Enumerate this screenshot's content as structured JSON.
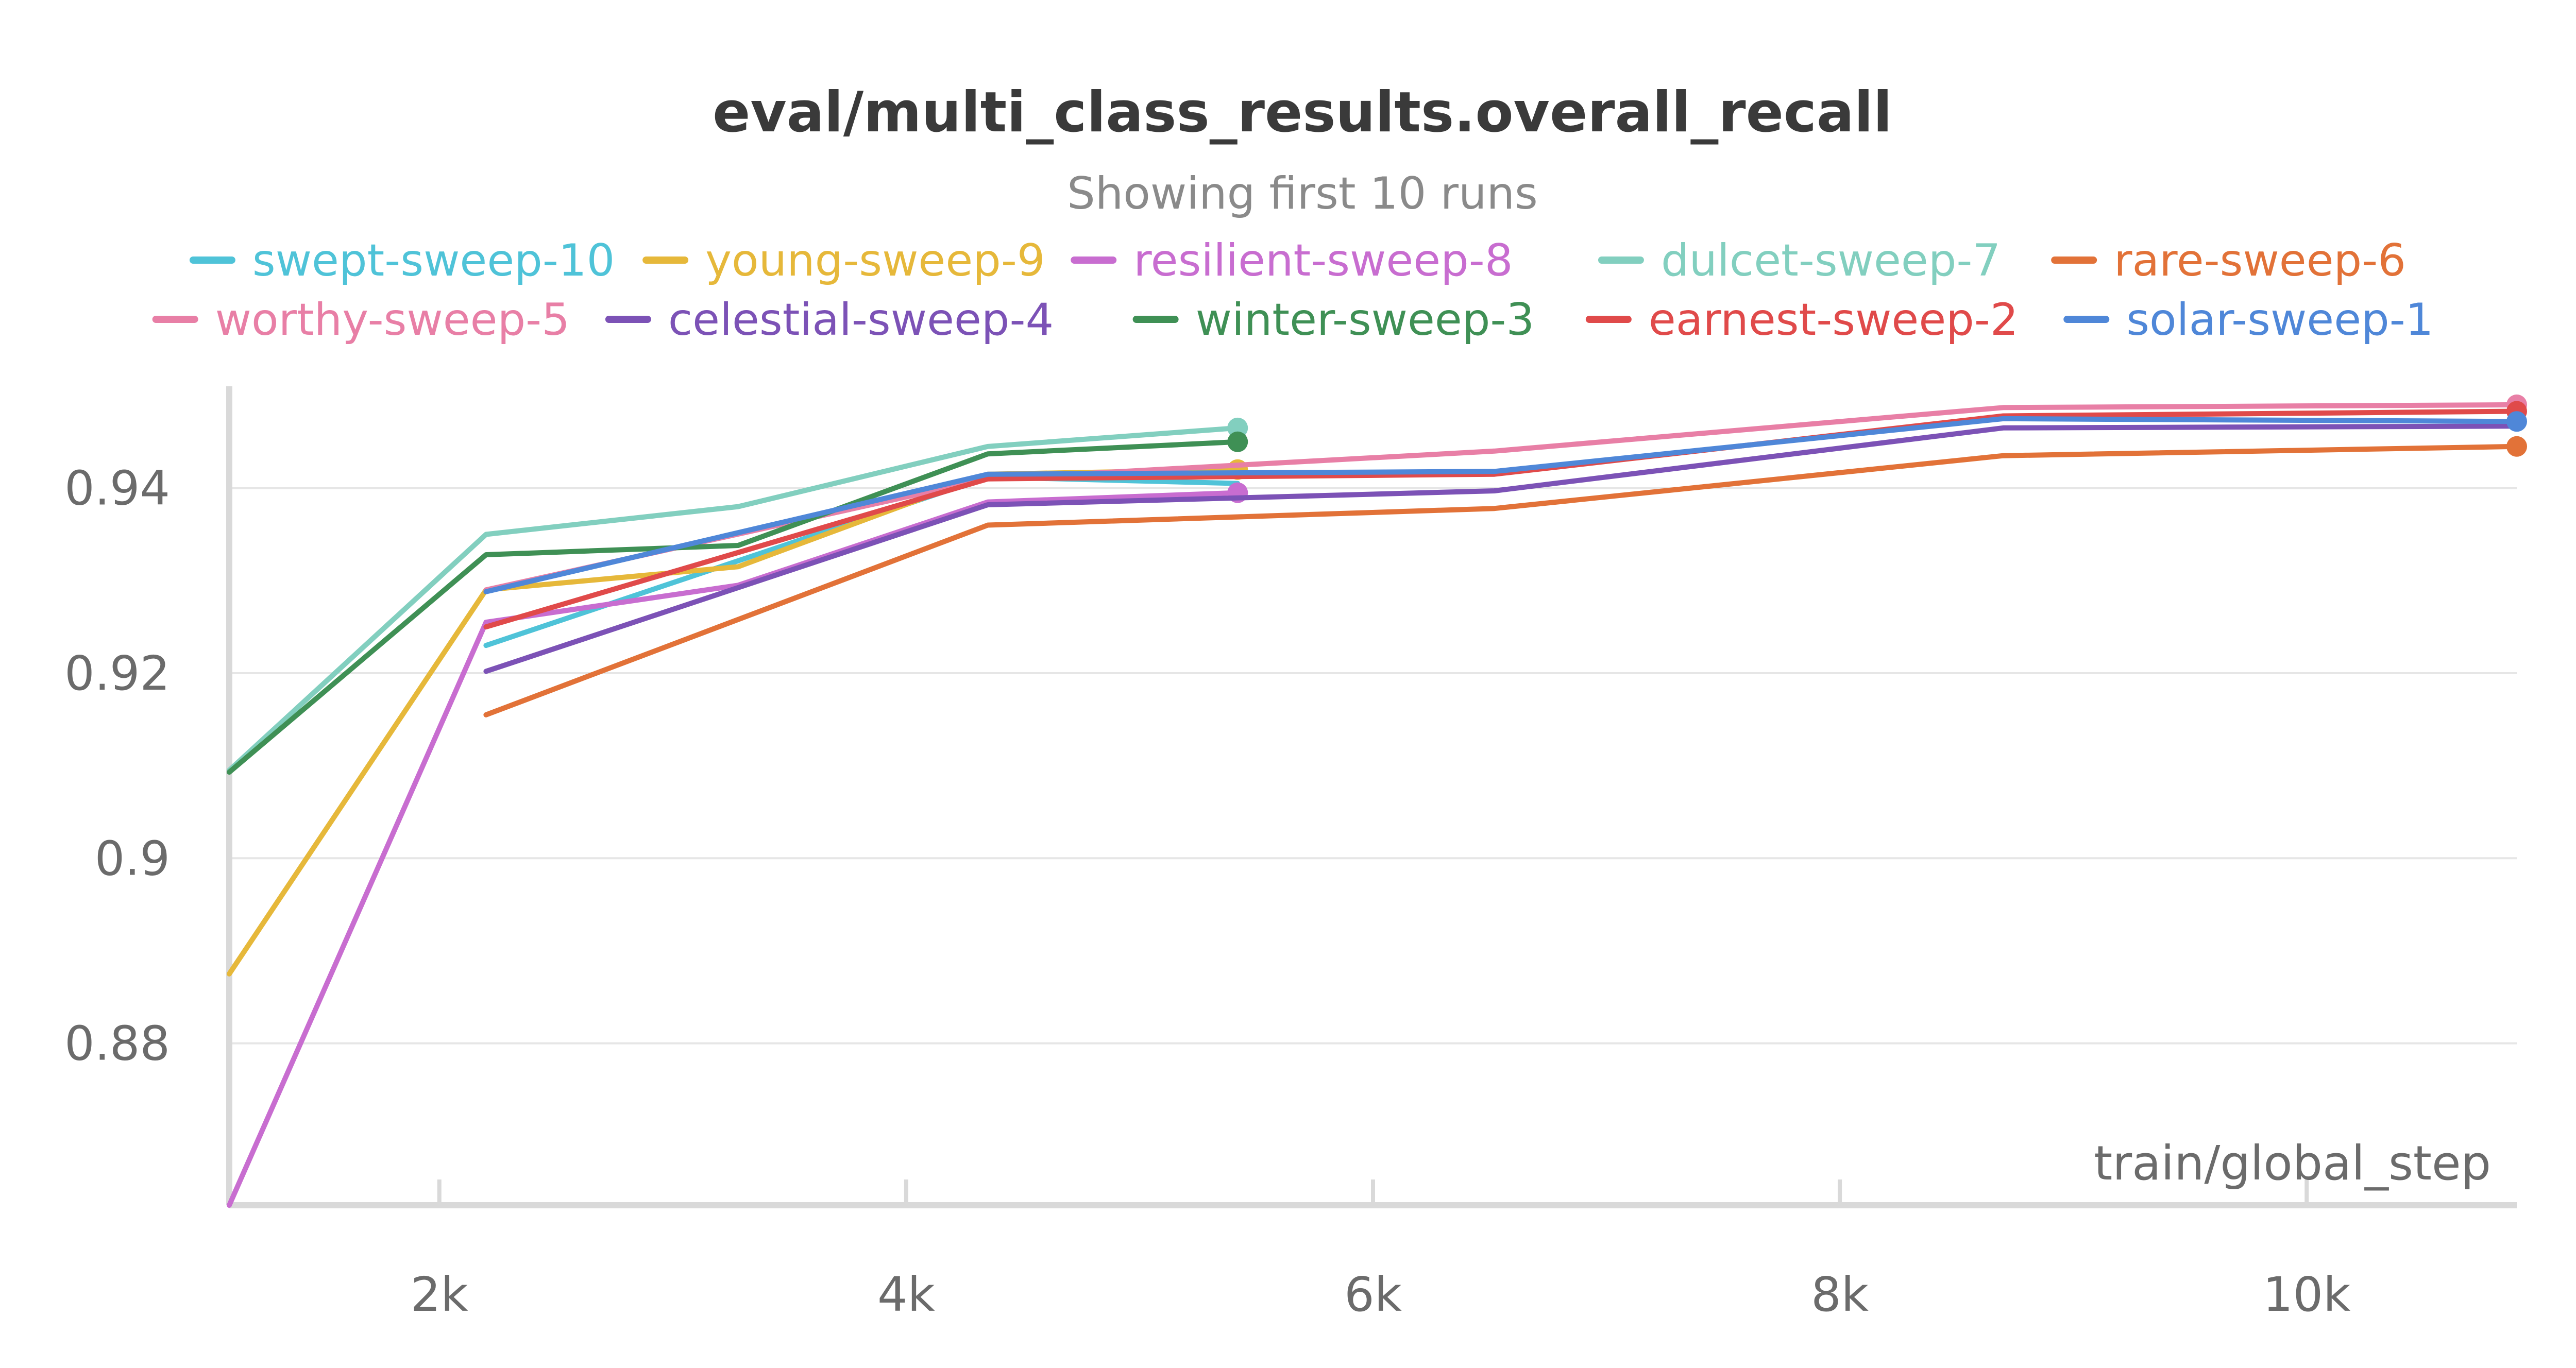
{
  "chart_data": {
    "type": "line",
    "title": "eval/multi_class_results.overall_recall",
    "subtitle": "Showing first 10 runs",
    "xlabel": "train/global_step",
    "ylabel": "",
    "xlim": [
      1100,
      10900
    ],
    "ylim": [
      0.8625,
      0.951
    ],
    "x_ticks": [
      2000,
      4000,
      6000,
      8000,
      10000
    ],
    "x_tick_labels": [
      "2k",
      "4k",
      "6k",
      "8k",
      "10k"
    ],
    "y_ticks": [
      0.88,
      0.9,
      0.92,
      0.94
    ],
    "y_tick_labels": [
      "0.88",
      "0.9",
      "0.92",
      "0.94"
    ],
    "grid": true,
    "legend_position": "top",
    "series": [
      {
        "name": "swept-sweep-10",
        "color": "#4fc3d8",
        "x": [
          2200,
          4350,
          5420
        ],
        "y": [
          0.923,
          0.9412,
          0.9405
        ],
        "marker_last": false
      },
      {
        "name": "young-sweep-9",
        "color": "#e6b83a",
        "x": [
          1100,
          2200,
          3280,
          4350,
          5420
        ],
        "y": [
          0.8875,
          0.929,
          0.9315,
          0.9415,
          0.942
        ],
        "marker_last": true
      },
      {
        "name": "resilient-sweep-8",
        "color": "#c86dd0",
        "x": [
          1100,
          2200,
          3280,
          4350,
          5420
        ],
        "y": [
          0.8625,
          0.9255,
          0.9295,
          0.9385,
          0.9395
        ],
        "marker_last": true
      },
      {
        "name": "dulcet-sweep-7",
        "color": "#82cfbf",
        "x": [
          1100,
          2200,
          3280,
          4350,
          5420
        ],
        "y": [
          0.9095,
          0.935,
          0.938,
          0.9445,
          0.9465
        ],
        "marker_last": true
      },
      {
        "name": "rare-sweep-6",
        "color": "#e27238",
        "x": [
          2200,
          4350,
          6520,
          8700,
          10900
        ],
        "y": [
          0.9155,
          0.936,
          0.9378,
          0.9435,
          0.9445
        ],
        "marker_last": true
      },
      {
        "name": "worthy-sweep-5",
        "color": "#e87fa6",
        "x": [
          2200,
          4350,
          6520,
          8700,
          10900
        ],
        "y": [
          0.929,
          0.941,
          0.944,
          0.9487,
          0.949
        ],
        "marker_last": true
      },
      {
        "name": "celestial-sweep-4",
        "color": "#7c52b6",
        "x": [
          2200,
          4350,
          6520,
          8700,
          10900
        ],
        "y": [
          0.9202,
          0.9382,
          0.9397,
          0.9465,
          0.9467
        ],
        "marker_last": false
      },
      {
        "name": "winter-sweep-3",
        "color": "#3f9055",
        "x": [
          1100,
          2200,
          3280,
          4350,
          5420
        ],
        "y": [
          0.9093,
          0.9328,
          0.9338,
          0.9437,
          0.945
        ],
        "marker_last": true
      },
      {
        "name": "earnest-sweep-2",
        "color": "#e04a4a",
        "x": [
          2200,
          4350,
          6520,
          8700,
          10900
        ],
        "y": [
          0.925,
          0.941,
          0.9415,
          0.9478,
          0.9483
        ],
        "marker_last": true
      },
      {
        "name": "solar-sweep-1",
        "color": "#4f87d8",
        "x": [
          2200,
          4350,
          6520,
          8700,
          10900
        ],
        "y": [
          0.9288,
          0.9415,
          0.9418,
          0.9475,
          0.9472
        ],
        "marker_last": true
      }
    ]
  }
}
